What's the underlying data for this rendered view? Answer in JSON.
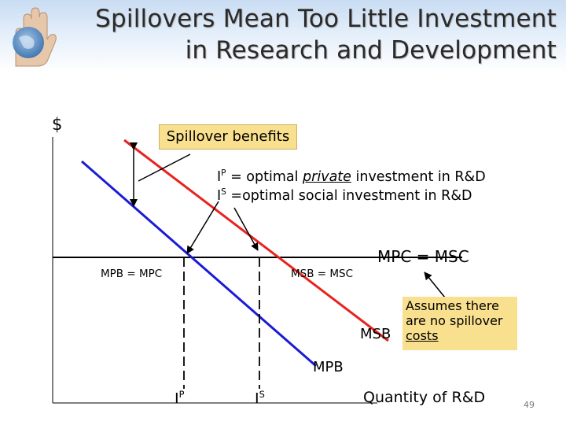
{
  "title": {
    "line1": "Spillovers Mean Too Little Investment",
    "line2": "in Research and Development"
  },
  "y_axis_label": "$",
  "x_axis_label": "Quantity of R&D",
  "callout": "Spillover benefits",
  "definitions": {
    "ip_symbol": "I",
    "ip_sup": "P",
    "ip_prefix": " = optimal ",
    "ip_emphasis": "private",
    "ip_suffix": " investment in R&D",
    "is_symbol": "I",
    "is_sup": "S",
    "is_text": " =optimal social investment in R&D"
  },
  "curve_labels": {
    "mpc_msc": "MPC = MSC",
    "mpb_mpc": "MPB = MPC",
    "msb_msc": "MSB = MSC",
    "msb": "MSB",
    "mpb": "MPB"
  },
  "axis_ticks": {
    "ip_symbol": "I",
    "ip_sup": "P",
    "is_symbol": "I",
    "is_sup": "S"
  },
  "note": {
    "line1": "Assumes there",
    "line2": "are no spillover",
    "line3": "costs"
  },
  "page_number": "49",
  "colors": {
    "msb_curve": "#e8231f",
    "mpb_curve": "#1b1bd6",
    "callout_fill": "#f9e08f",
    "header_gradient_top": "#c9dcf2"
  }
}
